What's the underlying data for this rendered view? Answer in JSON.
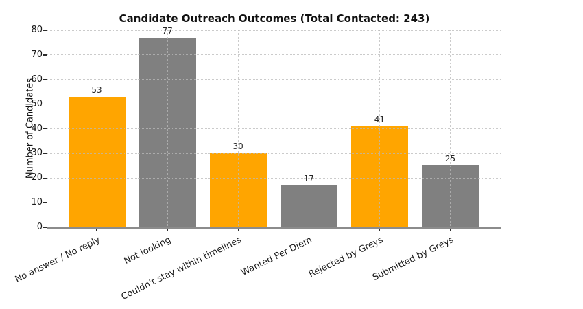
{
  "chart_data": {
    "type": "bar",
    "title": "Candidate Outreach Outcomes (Total Contacted: 243)",
    "total_contacted": 243,
    "ylabel": "Number of Candidates",
    "xlabel": "",
    "categories": [
      "No answer / No reply",
      "Not looking",
      "Couldn't stay within timelines",
      "Wanted Per Diem",
      "Rejected by Greys",
      "Submitted by Greys"
    ],
    "values": [
      53,
      77,
      30,
      17,
      41,
      25
    ],
    "bar_colors": [
      "#FFA500",
      "#808080",
      "#FFA500",
      "#808080",
      "#FFA500",
      "#808080"
    ],
    "value_labels_shown": true,
    "ylim": [
      0,
      80
    ],
    "yticks": [
      0,
      10,
      20,
      30,
      40,
      50,
      60,
      70,
      80
    ],
    "xtick_rotation_deg": 26,
    "grid": {
      "horizontal": true,
      "vertical": true,
      "style": "dotted",
      "color": "#d2d2d2",
      "above_bars": true
    },
    "legend": "none",
    "background": "#ffffff",
    "colors": {
      "accent_orange": "#FFA500",
      "bar_gray": "#808080",
      "left_spine": "#2b2b2b",
      "bottom_spine": "#8c8c8c",
      "text": "#1a1a1a"
    }
  }
}
